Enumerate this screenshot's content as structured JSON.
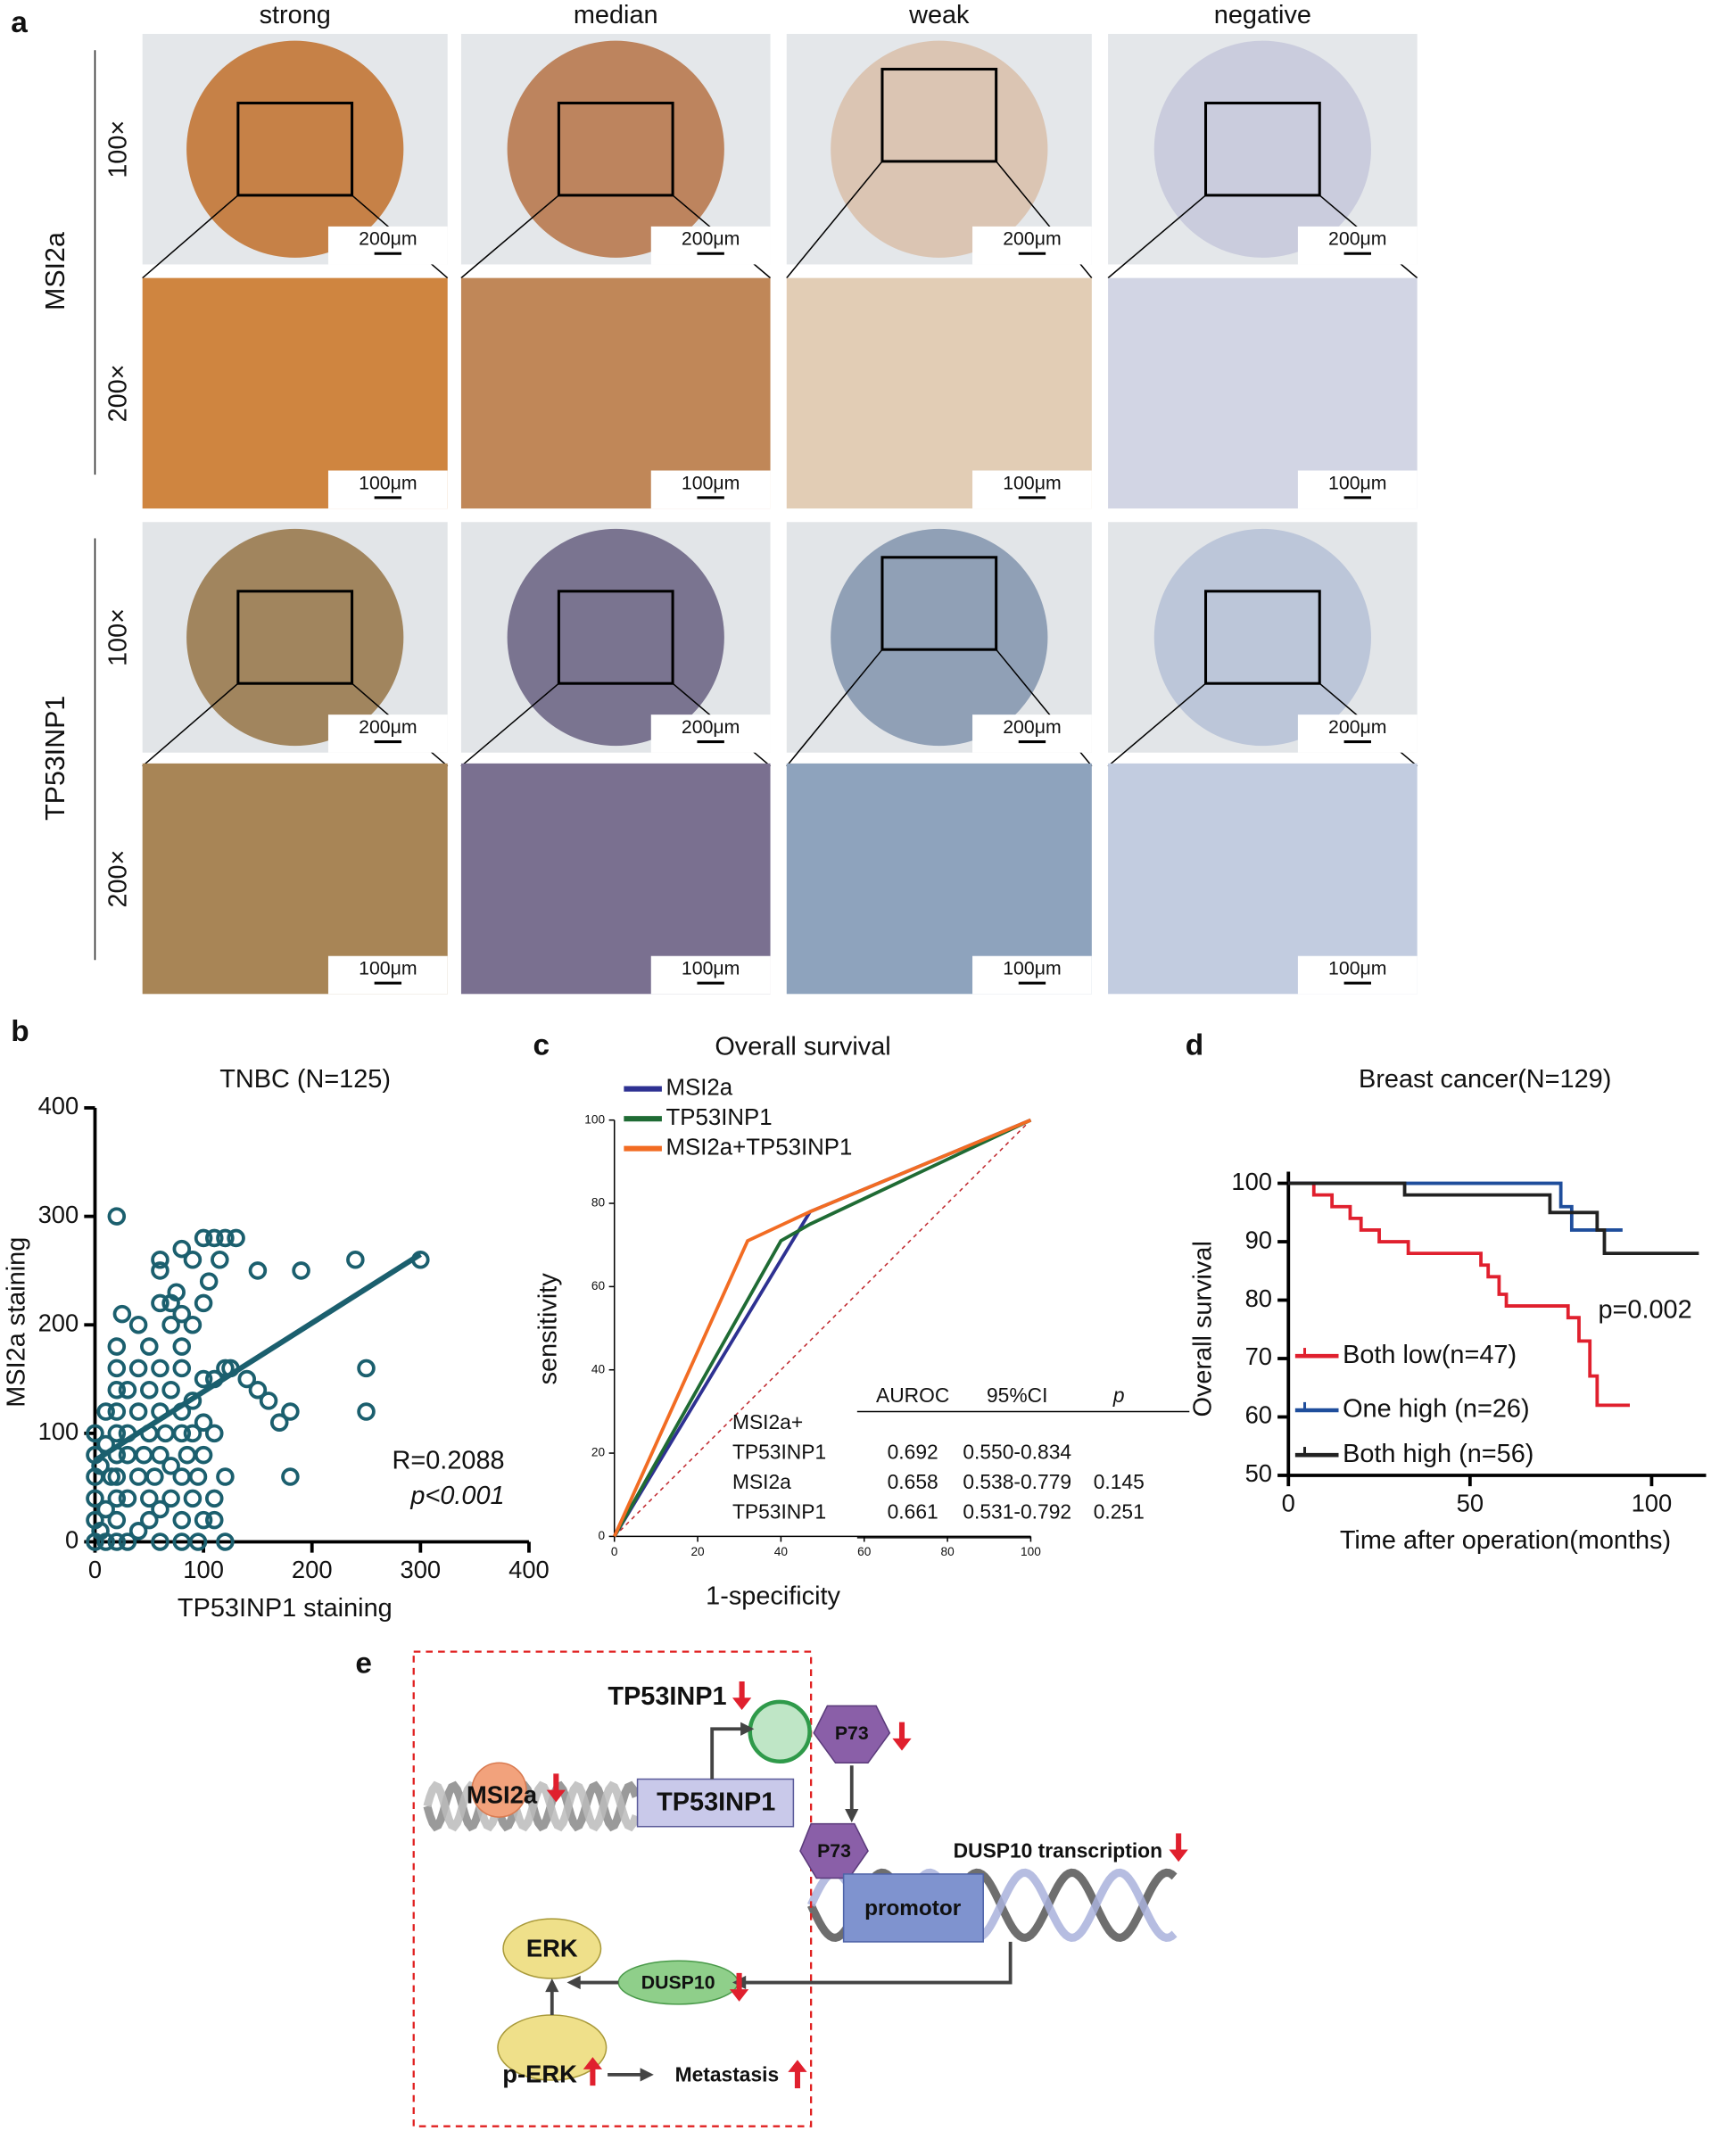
{
  "figure": {
    "panel_labels": [
      "a",
      "b",
      "c",
      "d",
      "e"
    ],
    "panel_a": {
      "columns": [
        "strong",
        "median",
        "weak",
        "negative"
      ],
      "groups": [
        {
          "name": "MSI2a",
          "rows": [
            {
              "magnification": "100×",
              "scale_bar": "200μm"
            },
            {
              "magnification": "200×",
              "scale_bar": "100μm"
            }
          ]
        },
        {
          "name": "TP53INP1",
          "rows": [
            {
              "magnification": "100×",
              "scale_bar": "200μm"
            },
            {
              "magnification": "200×",
              "scale_bar": "100μm"
            }
          ]
        }
      ]
    },
    "panel_e": {
      "tp53inp1_protein": "TP53INP1",
      "msi2a": "MSI2a",
      "tp53inp1_gene": "TP53INP1",
      "p73_top": "P73",
      "p73_bottom": "P73",
      "dusp10_transcription": "DUSP10 transcription",
      "promotor": "promotor",
      "erk": "ERK",
      "dusp10": "DUSP10",
      "p_erk": "p-ERK",
      "metastasis": "Metastasis"
    }
  },
  "chart_data": [
    {
      "type": "scatter",
      "title": "TNBC (N=125)",
      "xlabel": "TP53INP1 staining",
      "ylabel": "MSI2a staining",
      "xlim": [
        0,
        400
      ],
      "ylim": [
        0,
        400
      ],
      "xticks": [
        0,
        100,
        200,
        300,
        400
      ],
      "yticks": [
        0,
        100,
        200,
        300,
        400
      ],
      "color": "#1b5f6e",
      "x": [
        20,
        0,
        0,
        0,
        0,
        0,
        0,
        5,
        5,
        10,
        10,
        10,
        10,
        15,
        20,
        20,
        20,
        20,
        20,
        20,
        20,
        20,
        20,
        20,
        25,
        30,
        30,
        30,
        30,
        30,
        40,
        40,
        40,
        40,
        40,
        45,
        50,
        50,
        50,
        50,
        50,
        55,
        60,
        60,
        60,
        60,
        60,
        60,
        60,
        60,
        65,
        70,
        70,
        70,
        70,
        70,
        75,
        80,
        80,
        80,
        80,
        80,
        80,
        80,
        80,
        80,
        85,
        90,
        90,
        90,
        90,
        90,
        95,
        95,
        100,
        100,
        100,
        100,
        100,
        100,
        105,
        110,
        110,
        110,
        110,
        110,
        115,
        120,
        120,
        120,
        120,
        125,
        130,
        140,
        150,
        150,
        160,
        170,
        180,
        180,
        190,
        240,
        250,
        250,
        300
      ],
      "values": [
        300,
        0,
        20,
        40,
        60,
        80,
        100,
        10,
        70,
        0,
        30,
        90,
        120,
        60,
        0,
        20,
        40,
        60,
        80,
        100,
        120,
        140,
        160,
        180,
        210,
        0,
        40,
        80,
        100,
        140,
        10,
        60,
        120,
        160,
        200,
        80,
        20,
        40,
        100,
        140,
        180,
        60,
        0,
        30,
        80,
        120,
        160,
        220,
        250,
        260,
        100,
        40,
        70,
        140,
        200,
        220,
        230,
        0,
        20,
        60,
        100,
        120,
        160,
        180,
        210,
        270,
        80,
        40,
        100,
        130,
        200,
        260,
        0,
        60,
        20,
        80,
        110,
        150,
        220,
        280,
        240,
        20,
        40,
        100,
        150,
        280,
        260,
        0,
        60,
        160,
        280,
        160,
        280,
        150,
        140,
        250,
        130,
        110,
        60,
        120,
        250,
        260,
        160,
        120,
        260
      ],
      "trendline": {
        "x": [
          0,
          300
        ],
        "values": [
          75,
          265
        ]
      },
      "annotations": [
        "R=0.2088",
        "p<0.001"
      ]
    },
    {
      "type": "line",
      "title": "Overall survival",
      "xlabel": "1-specificity",
      "ylabel": "sensitivity",
      "xlim": [
        0,
        100
      ],
      "ylim": [
        0,
        100
      ],
      "xticks": [
        0,
        20,
        40,
        60,
        80,
        100
      ],
      "yticks": [
        0,
        20,
        40,
        60,
        80,
        100
      ],
      "series": [
        {
          "name": "MSI2a",
          "color": "#2e3192",
          "x": [
            0,
            47,
            100
          ],
          "values": [
            0,
            78,
            100
          ]
        },
        {
          "name": "TP53INP1",
          "color": "#1f6b34",
          "x": [
            0,
            40,
            47,
            100
          ],
          "values": [
            0,
            71,
            75,
            100
          ]
        },
        {
          "name": "MSI2a+TP53INP1",
          "color": "#f26c23",
          "x": [
            0,
            32,
            47,
            100
          ],
          "values": [
            0,
            71,
            78,
            100
          ]
        }
      ],
      "reference_line": {
        "x": [
          0,
          100
        ],
        "values": [
          0,
          100
        ],
        "color": "#c0272d"
      },
      "table": {
        "header": [
          "AUROC",
          "95%CI",
          "p"
        ],
        "rows": [
          [
            "MSI2a+"
          ],
          [
            "TP53INP1",
            "0.692",
            "0.550-0.834"
          ],
          [
            "MSI2a",
            "0.658",
            "0.538-0.779",
            "0.145"
          ],
          [
            "TP53INP1",
            "0.661",
            "0.531-0.792",
            "0.251"
          ]
        ]
      }
    },
    {
      "type": "step",
      "title": "Breast cancer(N=129)",
      "xlabel": "Time after operation(months)",
      "ylabel": "Overall survival",
      "xlim": [
        0,
        115
      ],
      "ylim": [
        50,
        102
      ],
      "xticks": [
        0,
        50,
        100
      ],
      "yticks": [
        50,
        60,
        70,
        80,
        90,
        100
      ],
      "series": [
        {
          "name": "Both low(n=47)",
          "color": "#e0202e",
          "x": [
            0,
            7,
            12,
            17,
            20,
            25,
            33,
            53,
            55,
            58,
            60,
            77,
            80,
            83,
            85,
            94
          ],
          "values": [
            100,
            98,
            96,
            94,
            92,
            90,
            88,
            86,
            84,
            81,
            79,
            77,
            73,
            67,
            62,
            62
          ]
        },
        {
          "name": "One high (n=26)",
          "color": "#1f4e9c",
          "x": [
            0,
            75,
            78,
            92
          ],
          "values": [
            100,
            96,
            92,
            92
          ]
        },
        {
          "name": "Both high (n=56)",
          "color": "#222222",
          "x": [
            0,
            32,
            72,
            85,
            87,
            113
          ],
          "values": [
            100,
            98,
            95,
            92,
            88,
            88
          ]
        }
      ],
      "annotation": "p=0.002"
    }
  ]
}
